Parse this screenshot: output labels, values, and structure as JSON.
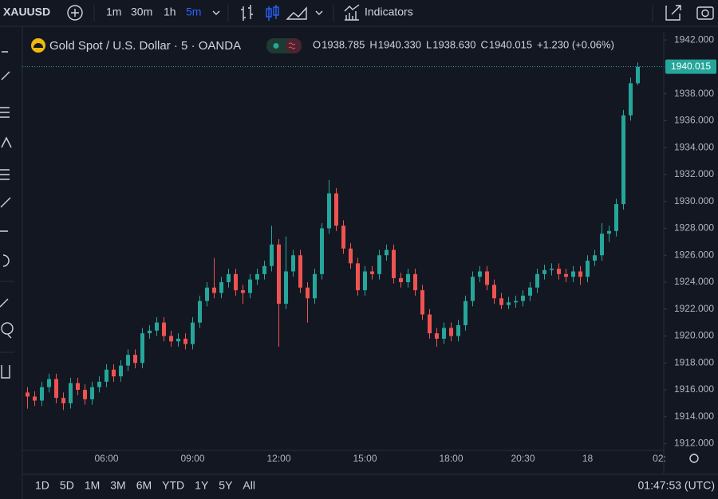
{
  "toolbar": {
    "symbol": "XAUUSD",
    "intervals": [
      "1m",
      "30m",
      "1h",
      "5m"
    ],
    "indicators": "Indicators"
  },
  "legend": {
    "title": "Gold Spot / U.S. Dollar · 5 · OANDA",
    "letters": [
      "O",
      "H",
      "L",
      "C"
    ],
    "values": [
      "1938.785",
      "1940.330",
      "1938.630",
      "1940.015"
    ],
    "change": "+1.230 (+0.06%)"
  },
  "bottom": {
    "ranges": [
      "1D",
      "5D",
      "1M",
      "3M",
      "6M",
      "YTD",
      "1Y",
      "5Y",
      "All"
    ],
    "clock": "01:47:53 (UTC)"
  },
  "chart_data": {
    "type": "candlestick",
    "up_color": "#26a69a",
    "down_color": "#ef5350",
    "grid": false,
    "categories": [
      null,
      null,
      null,
      null,
      null,
      null,
      null,
      null,
      null,
      null,
      null,
      "06:00",
      null,
      null,
      null,
      null,
      null,
      null,
      null,
      null,
      null,
      null,
      null,
      "09:00",
      null,
      null,
      null,
      null,
      null,
      null,
      null,
      null,
      null,
      null,
      null,
      "12:00",
      null,
      null,
      null,
      null,
      null,
      null,
      null,
      null,
      null,
      null,
      null,
      "15:00",
      null,
      null,
      null,
      null,
      null,
      null,
      null,
      null,
      null,
      null,
      null,
      "18:00",
      null,
      null,
      null,
      null,
      null,
      null,
      null,
      null,
      null,
      "20:30",
      null,
      null,
      null,
      null,
      null,
      null,
      null,
      null,
      "18",
      null,
      null,
      null,
      null,
      null,
      null,
      null,
      null,
      null,
      "02:"
    ],
    "open": [
      1915.8,
      1915.5,
      1915.2,
      1916.2,
      1916.8,
      1915.4,
      1915.0,
      1916.5,
      1916.0,
      1915.3,
      1916.2,
      1916.6,
      1917.5,
      1917.0,
      1917.8,
      1918.6,
      1918.0,
      1920.2,
      1920.4,
      1921.0,
      1920.0,
      1919.6,
      1919.8,
      1919.4,
      1921.0,
      1922.6,
      1923.6,
      1923.2,
      1924.0,
      1924.6,
      1923.4,
      1923.2,
      1924.2,
      1924.6,
      1925.2,
      1926.8,
      1922.4,
      1924.8,
      1926.0,
      1923.6,
      1922.8,
      1924.6,
      1928.0,
      1930.6,
      1928.2,
      1926.5,
      1925.4,
      1923.4,
      1924.8,
      1924.6,
      1926.0,
      1926.4,
      1924.3,
      1924.0,
      1924.6,
      1923.4,
      1921.6,
      1920.2,
      1919.8,
      1920.6,
      1920.0,
      1920.8,
      1922.6,
      1924.4,
      1924.8,
      1923.8,
      1922.8,
      1922.3,
      1922.5,
      1922.6,
      1923.0,
      1923.6,
      1924.6,
      1924.9,
      1925.0,
      1924.6,
      1924.4,
      1924.8,
      1924.4,
      1925.6,
      1926.0,
      1927.6,
      1927.8,
      1929.8,
      1936.4,
      1938.785,
      null,
      null,
      null
    ],
    "high": [
      1916.2,
      1915.9,
      1916.6,
      1917.2,
      1917.2,
      1915.8,
      1916.9,
      1916.9,
      1916.4,
      1916.6,
      1917.0,
      1917.9,
      1917.9,
      1918.2,
      1919.0,
      1919.0,
      1920.6,
      1920.8,
      1921.4,
      1921.4,
      1920.4,
      1920.2,
      1920.2,
      1921.4,
      1923.0,
      1924.0,
      1925.8,
      1924.4,
      1925.0,
      1925.0,
      1923.8,
      1924.6,
      1925.0,
      1925.6,
      1928.2,
      1927.2,
      1927.4,
      1926.4,
      1926.4,
      1924.0,
      1925.0,
      1928.4,
      1931.6,
      1931.0,
      1928.6,
      1926.9,
      1925.8,
      1925.2,
      1925.2,
      1926.4,
      1926.8,
      1926.8,
      1924.7,
      1925.0,
      1925.0,
      1923.8,
      1922.0,
      1920.6,
      1921.0,
      1921.0,
      1921.2,
      1923.0,
      1924.8,
      1925.2,
      1925.2,
      1924.2,
      1923.2,
      1922.9,
      1923.0,
      1923.4,
      1924.0,
      1925.0,
      1925.3,
      1925.4,
      1925.4,
      1925.0,
      1925.2,
      1925.2,
      1926.0,
      1926.4,
      1928.4,
      1928.2,
      1930.2,
      1936.8,
      1939.2,
      1940.33,
      null,
      null,
      null
    ],
    "low": [
      1914.6,
      1914.8,
      1914.8,
      1915.8,
      1915.0,
      1914.5,
      1914.6,
      1915.6,
      1914.9,
      1914.9,
      1915.8,
      1916.2,
      1916.6,
      1916.6,
      1917.4,
      1917.6,
      1917.6,
      1919.8,
      1920.0,
      1919.6,
      1919.2,
      1919.2,
      1919.0,
      1919.0,
      1920.6,
      1922.2,
      1922.8,
      1922.8,
      1923.6,
      1923.0,
      1922.4,
      1922.8,
      1923.8,
      1924.2,
      1924.8,
      1919.2,
      1922.0,
      1924.4,
      1923.2,
      1921.0,
      1922.4,
      1924.2,
      1927.6,
      1927.8,
      1926.1,
      1925.0,
      1923.0,
      1923.0,
      1924.2,
      1924.2,
      1925.6,
      1923.9,
      1923.6,
      1923.6,
      1923.0,
      1921.2,
      1919.8,
      1919.2,
      1919.4,
      1919.6,
      1919.6,
      1920.4,
      1922.2,
      1924.0,
      1923.4,
      1922.4,
      1922.0,
      1922.0,
      1922.1,
      1922.2,
      1922.6,
      1923.2,
      1924.2,
      1924.5,
      1924.2,
      1924.0,
      1924.0,
      1923.8,
      1924.0,
      1925.2,
      1925.6,
      1927.0,
      1927.4,
      1929.4,
      1936.0,
      1938.63,
      null,
      null,
      null
    ],
    "close": [
      1915.5,
      1915.2,
      1916.2,
      1916.8,
      1915.4,
      1915.0,
      1916.5,
      1916.0,
      1915.3,
      1916.2,
      1916.6,
      1917.5,
      1917.0,
      1917.8,
      1918.6,
      1918.0,
      1920.2,
      1920.4,
      1921.0,
      1920.0,
      1919.6,
      1919.8,
      1919.4,
      1921.0,
      1922.6,
      1923.6,
      1923.2,
      1924.0,
      1924.6,
      1923.4,
      1923.2,
      1924.2,
      1924.6,
      1925.2,
      1926.8,
      1922.4,
      1924.8,
      1926.0,
      1923.6,
      1922.8,
      1924.6,
      1928.0,
      1930.6,
      1928.2,
      1926.5,
      1925.4,
      1923.4,
      1924.8,
      1924.6,
      1926.0,
      1926.4,
      1924.3,
      1924.0,
      1924.6,
      1923.4,
      1921.6,
      1920.2,
      1919.8,
      1920.6,
      1920.0,
      1920.8,
      1922.6,
      1924.4,
      1924.8,
      1923.8,
      1922.8,
      1922.3,
      1922.5,
      1922.6,
      1923.0,
      1923.6,
      1924.6,
      1924.9,
      1925.0,
      1924.6,
      1924.4,
      1924.8,
      1924.4,
      1925.6,
      1926.0,
      1927.6,
      1927.8,
      1929.8,
      1936.4,
      1938.785,
      1940.015,
      null,
      null,
      null
    ],
    "ylim": [
      1911.5,
      1942.6
    ],
    "yticks": [
      {
        "value": 1912,
        "label": "1912.000"
      },
      {
        "value": 1914,
        "label": "1914.000"
      },
      {
        "value": 1916,
        "label": "1916.000"
      },
      {
        "value": 1918,
        "label": "1918.000"
      },
      {
        "value": 1920,
        "label": "1920.000"
      },
      {
        "value": 1922,
        "label": "1922.000"
      },
      {
        "value": 1924,
        "label": "1924.000"
      },
      {
        "value": 1926,
        "label": "1926.000"
      },
      {
        "value": 1928,
        "label": "1928.000"
      },
      {
        "value": 1930,
        "label": "1930.000"
      },
      {
        "value": 1932,
        "label": "1932.000"
      },
      {
        "value": 1934,
        "label": "1934.000"
      },
      {
        "value": 1936,
        "label": "1936.000"
      },
      {
        "value": 1938,
        "label": "1938.000"
      },
      {
        "value": 1940,
        "label": "1940.000"
      },
      {
        "value": 1942,
        "label": "1942.000"
      }
    ]
  }
}
